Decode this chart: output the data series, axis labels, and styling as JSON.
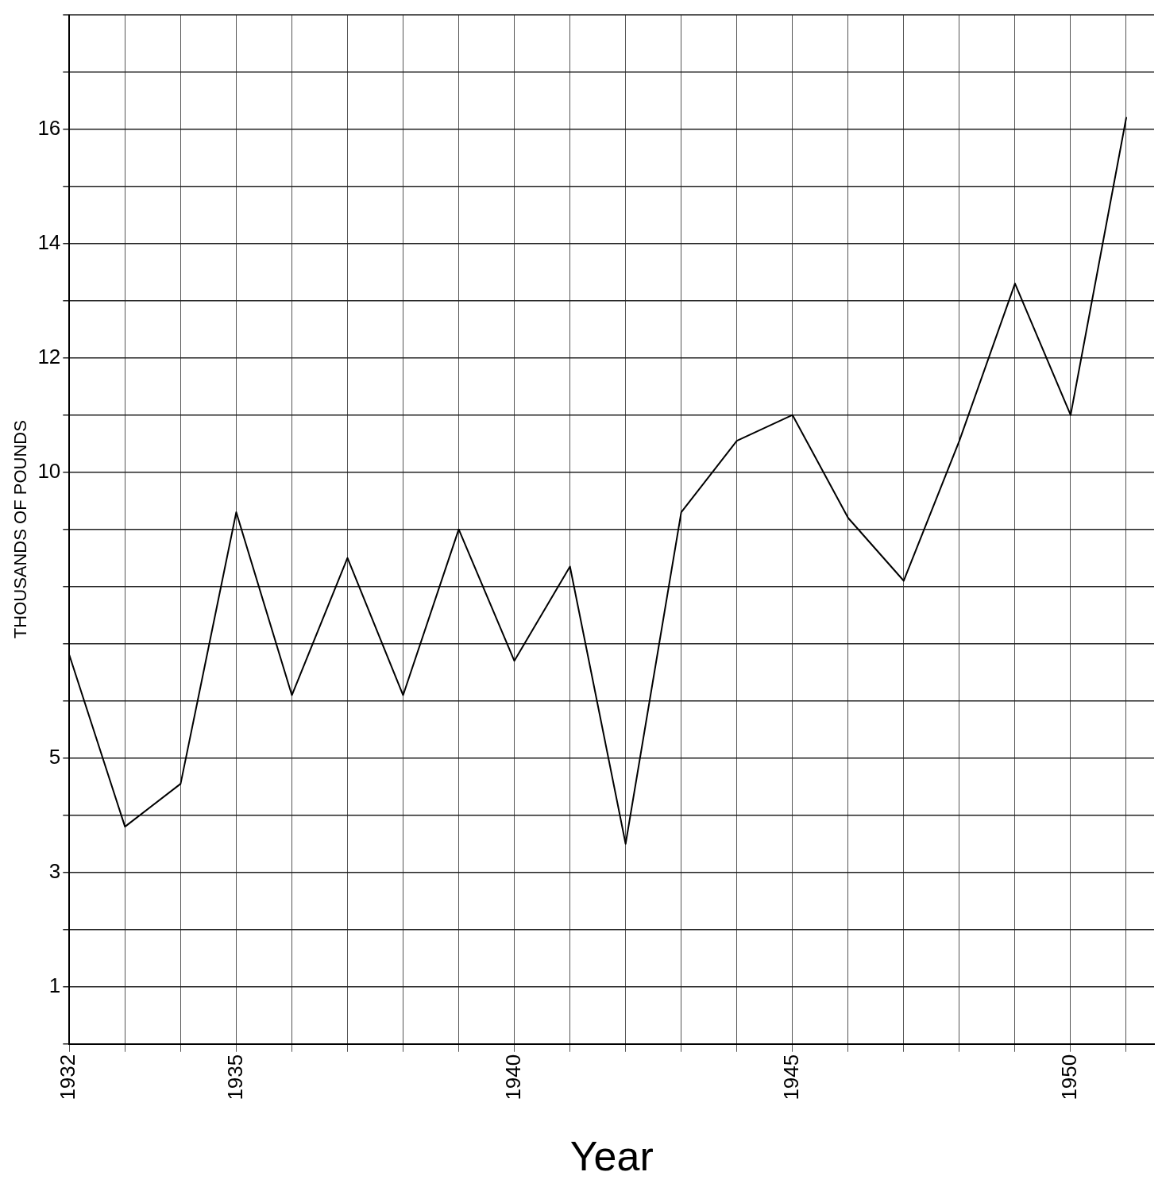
{
  "chart_data": {
    "type": "line",
    "xlabel": "Year",
    "ylabel": "THOUSANDS OF POUNDS",
    "x": [
      1932,
      1933,
      1934,
      1935,
      1936,
      1937,
      1938,
      1939,
      1940,
      1941,
      1942,
      1943,
      1944,
      1945,
      1946,
      1947,
      1948,
      1949,
      1950,
      1951
    ],
    "series": [
      {
        "color": "#000000",
        "values": [
          6.8,
          3.8,
          4.55,
          9.3,
          6.1,
          8.5,
          6.1,
          9.0,
          6.7,
          8.35,
          3.5,
          9.3,
          10.55,
          11.0,
          9.2,
          8.1,
          10.55,
          13.3,
          11.0,
          16.2
        ]
      }
    ],
    "xlim": [
      1932,
      1951.5
    ],
    "xticks": [
      1932,
      {
        "value": 1933,
        "label": null
      },
      {
        "value": 1934,
        "label": null
      },
      1935,
      {
        "value": 1936,
        "label": null
      },
      {
        "value": 1937,
        "label": null
      },
      {
        "value": 1938,
        "label": null
      },
      {
        "value": 1939,
        "label": null
      },
      1940,
      {
        "value": 1941,
        "label": null
      },
      {
        "value": 1942,
        "label": null
      },
      {
        "value": 1943,
        "label": null
      },
      {
        "value": 1944,
        "label": null
      },
      1945,
      {
        "value": 1946,
        "label": null
      },
      {
        "value": 1947,
        "label": null
      },
      {
        "value": 1948,
        "label": null
      },
      {
        "value": 1949,
        "label": null
      },
      1950,
      {
        "value": 1951,
        "label": null
      }
    ],
    "ylim": [
      0,
      18
    ],
    "yticks": [
      {
        "value": 0,
        "label": null
      },
      1,
      {
        "value": 2,
        "label": null
      },
      3,
      {
        "value": 4,
        "label": null
      },
      5,
      {
        "value": 6,
        "label": null
      },
      {
        "value": 7,
        "label": null
      },
      {
        "value": 8,
        "label": null
      },
      {
        "value": 9,
        "label": null
      },
      10,
      {
        "value": 11,
        "label": null
      },
      12,
      {
        "value": 13,
        "label": null
      },
      14,
      {
        "value": 15,
        "label": null
      },
      16,
      {
        "value": 17,
        "label": null
      },
      {
        "value": 18,
        "label": null
      }
    ],
    "grid": true,
    "marker": "none",
    "line_style": "solid",
    "legend": false
  }
}
